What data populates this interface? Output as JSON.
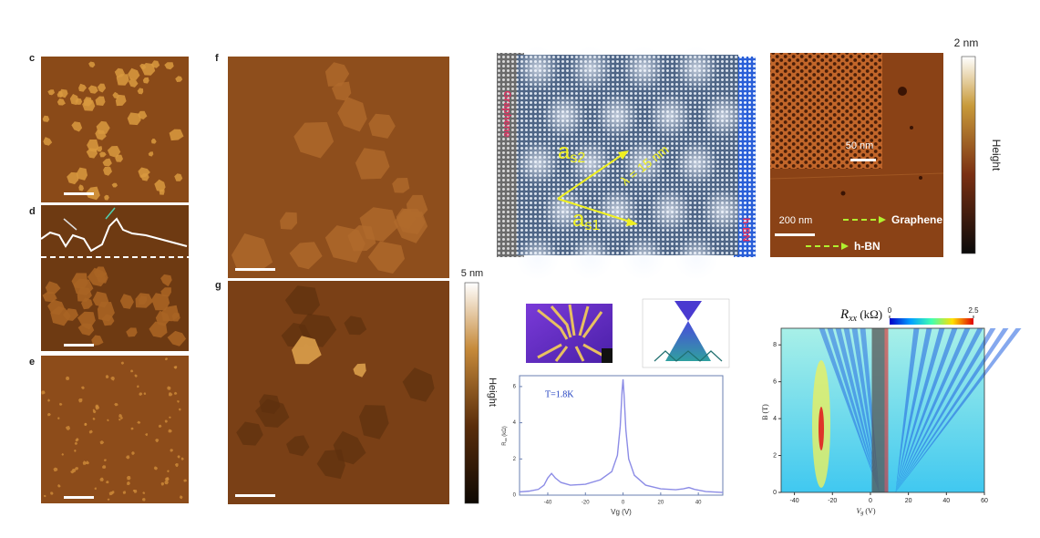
{
  "figure": {
    "panel_labels": [
      "c",
      "d",
      "e",
      "f",
      "g"
    ],
    "colorbar_afm": {
      "max_label": "5 nm",
      "label": "Height"
    },
    "moire": {
      "left_label": "Graphene",
      "right_label": "h-BN",
      "a_s2": {
        "main": "a",
        "sub": "s2"
      },
      "a_s1": {
        "main": "a",
        "sub": "s1"
      },
      "wavelength": "λ = 15 nm"
    },
    "afm_moire": {
      "inset_scale": "50 nm",
      "scale": "200 nm",
      "legend": [
        "Graphene",
        "h-BN"
      ]
    },
    "colorbar_moire": {
      "max_label": "2 nm",
      "label": "Height"
    }
  },
  "chart_data": [
    {
      "type": "line",
      "annotation": "T=1.8K",
      "y_label": {
        "main": "R",
        "sub": "xx",
        "rest": " (kΩ)"
      },
      "x_label": "Vg (V)",
      "color": "#8c8ce6",
      "x": [
        -55,
        -50,
        -45,
        -42,
        -40,
        -38,
        -36,
        -33,
        -28,
        -20,
        -12,
        -6,
        -3,
        -1.5,
        -0.5,
        0,
        0.5,
        1.5,
        3,
        6,
        12,
        20,
        28,
        32,
        35,
        38,
        44,
        53
      ],
      "values": [
        0.18,
        0.22,
        0.32,
        0.55,
        0.95,
        1.2,
        0.95,
        0.7,
        0.55,
        0.6,
        0.85,
        1.3,
        2.2,
        3.8,
        5.8,
        6.4,
        5.6,
        3.6,
        2.0,
        1.1,
        0.55,
        0.35,
        0.3,
        0.35,
        0.42,
        0.32,
        0.2,
        0.15
      ],
      "xlim": [
        -55,
        53
      ],
      "ylim": [
        0,
        6.6
      ],
      "xticks": [
        -40,
        -20,
        0,
        20,
        40
      ],
      "yticks": [
        0,
        2,
        4,
        6
      ]
    },
    {
      "type": "heatmap",
      "title": {
        "main": "R",
        "sub": "xx",
        "rest": " (kΩ)"
      },
      "colorbar_ticks": [
        0,
        2.5
      ],
      "x_label": {
        "main": "V",
        "sub": "g",
        "rest": " (V)"
      },
      "y_label": "B (T)",
      "xlim": [
        -47,
        60
      ],
      "ylim": [
        0,
        8.9
      ],
      "xticks": [
        -40,
        -20,
        0,
        20,
        40,
        60
      ],
      "yticks": [
        0,
        2,
        4,
        6,
        8
      ]
    }
  ]
}
